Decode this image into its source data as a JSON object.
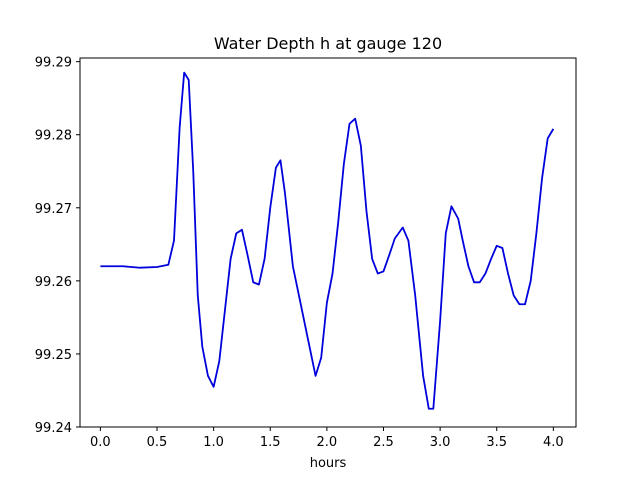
{
  "chart_data": {
    "type": "line",
    "title": "Water Depth h at gauge 120",
    "xlabel": "hours",
    "ylabel": "",
    "xlim": [
      -0.18,
      4.2
    ],
    "ylim": [
      99.24,
      99.2905
    ],
    "xticks": [
      "0.0",
      "0.5",
      "1.0",
      "1.5",
      "2.0",
      "2.5",
      "3.0",
      "3.5",
      "4.0"
    ],
    "yticks": [
      "99.24",
      "99.25",
      "99.26",
      "99.27",
      "99.28",
      "99.29"
    ],
    "grid": false,
    "legend": "none",
    "series": [
      {
        "color": "#0000dd",
        "x": [
          0.0,
          0.2,
          0.35,
          0.5,
          0.6,
          0.65,
          0.7,
          0.74,
          0.78,
          0.82,
          0.86,
          0.9,
          0.95,
          1.0,
          1.05,
          1.1,
          1.15,
          1.2,
          1.25,
          1.3,
          1.35,
          1.4,
          1.45,
          1.5,
          1.55,
          1.59,
          1.63,
          1.7,
          1.8,
          1.9,
          1.95,
          2.0,
          2.05,
          2.1,
          2.15,
          2.2,
          2.25,
          2.3,
          2.35,
          2.4,
          2.45,
          2.5,
          2.55,
          2.6,
          2.67,
          2.72,
          2.78,
          2.85,
          2.9,
          2.94,
          3.0,
          3.05,
          3.1,
          3.16,
          3.2,
          3.25,
          3.3,
          3.35,
          3.4,
          3.45,
          3.5,
          3.55,
          3.6,
          3.65,
          3.7,
          3.75,
          3.8,
          3.85,
          3.9,
          3.95,
          4.0
        ],
        "y": [
          99.262,
          99.262,
          99.2618,
          99.2619,
          99.2622,
          99.2655,
          99.281,
          99.2885,
          99.2875,
          99.275,
          99.258,
          99.251,
          99.247,
          99.2455,
          99.249,
          99.256,
          99.263,
          99.2665,
          99.267,
          99.2635,
          99.2598,
          99.2595,
          99.263,
          99.27,
          99.2755,
          99.2765,
          99.272,
          99.262,
          99.2545,
          99.247,
          99.2495,
          99.257,
          99.261,
          99.268,
          99.276,
          99.2815,
          99.2822,
          99.2785,
          99.2695,
          99.263,
          99.261,
          99.2613,
          99.2635,
          99.2658,
          99.2673,
          99.2655,
          99.258,
          99.247,
          99.2425,
          99.2425,
          99.2545,
          99.2665,
          99.2702,
          99.2685,
          99.2655,
          99.262,
          99.2598,
          99.2598,
          99.261,
          99.263,
          99.2648,
          99.2645,
          99.261,
          99.258,
          99.2568,
          99.2568,
          99.26,
          99.2665,
          99.274,
          99.2795,
          99.2808
        ]
      }
    ]
  }
}
